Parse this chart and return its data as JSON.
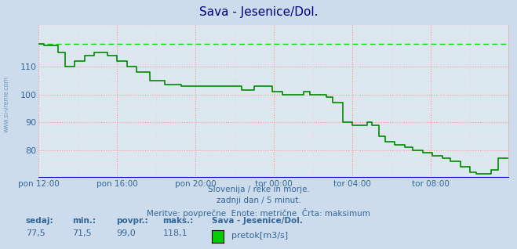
{
  "title": "Sava - Jesenice/Dol.",
  "title_color": "#000080",
  "bg_color": "#ccdcec",
  "plot_bg_color": "#dce8f0",
  "grid_color_major": "#ff9999",
  "grid_color_minor": "#ffcccc",
  "line_color": "#008800",
  "max_line_color": "#00dd00",
  "tick_color": "#336699",
  "text_color": "#336699",
  "xlim": [
    0,
    288
  ],
  "ylim": [
    70,
    125
  ],
  "yticks": [
    80,
    90,
    100,
    110
  ],
  "xtick_labels": [
    "pon 12:00",
    "pon 16:00",
    "pon 20:00",
    "tor 00:00",
    "tor 04:00",
    "tor 08:00"
  ],
  "xtick_positions": [
    0,
    48,
    96,
    144,
    192,
    240
  ],
  "max_value": 118.1,
  "sedaj": "77,5",
  "min_val": "71,5",
  "povpr": "99,0",
  "maks": "118,1",
  "station": "Sava - Jesenice/Dol.",
  "legend_label": "pretok[m3/s]",
  "legend_color": "#00cc00",
  "subtitle1": "Slovenija / reke in morje.",
  "subtitle2": "zadnji dan / 5 minut.",
  "subtitle3": "Meritve: povprečne  Enote: metrične  Črta: maksimum",
  "watermark": "www.si-vreme.com"
}
